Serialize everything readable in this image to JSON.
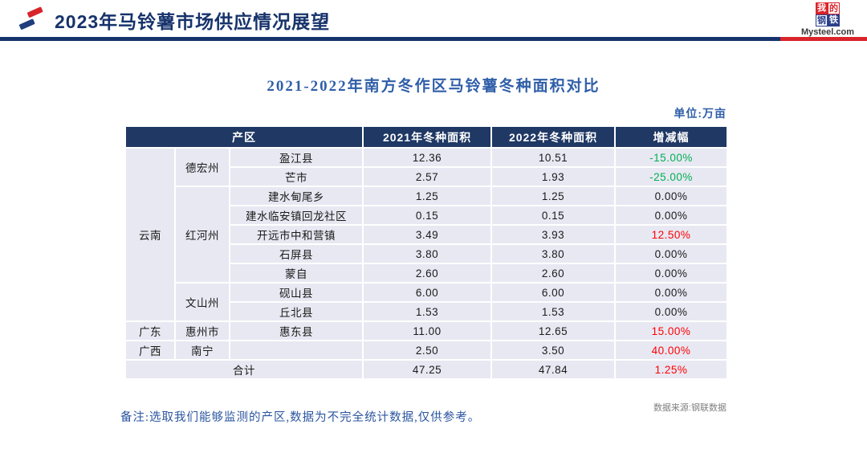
{
  "header": {
    "title": "2023年马铃薯市场供应情况展望",
    "logo": {
      "icon": "mysteel-flash-icon",
      "brand_chars": [
        "我",
        "的",
        "钢",
        "铁"
      ],
      "brand_domain": "Mysteel.com"
    }
  },
  "main": {
    "table_title": "2021-2022年南方冬作区马铃薯冬种面积对比",
    "unit_label": "单位:万亩"
  },
  "table": {
    "header": [
      {
        "text": "产区",
        "colspan": 3
      },
      {
        "text": "2021年冬种面积"
      },
      {
        "text": "2022年冬种面积"
      },
      {
        "text": "增减幅"
      }
    ],
    "rows": [
      {
        "cells": [
          {
            "text": "云南",
            "rowspan": 9,
            "name": "province-cell"
          },
          {
            "text": "德宏州",
            "rowspan": 2,
            "name": "prefecture-cell"
          },
          {
            "text": "盈江县",
            "name": "county-cell"
          },
          {
            "text": "12.36"
          },
          {
            "text": "10.51"
          },
          {
            "text": "-15.00%",
            "tone": "down",
            "name": "change-cell"
          }
        ]
      },
      {
        "cells": [
          {
            "text": "芒市",
            "name": "county-cell"
          },
          {
            "text": "2.57"
          },
          {
            "text": "1.93"
          },
          {
            "text": "-25.00%",
            "tone": "down",
            "name": "change-cell"
          }
        ]
      },
      {
        "cells": [
          {
            "text": "红河州",
            "rowspan": 5,
            "name": "prefecture-cell"
          },
          {
            "text": "建水甸尾乡",
            "name": "county-cell"
          },
          {
            "text": "1.25"
          },
          {
            "text": "1.25"
          },
          {
            "text": "0.00%",
            "tone": "flat",
            "name": "change-cell"
          }
        ]
      },
      {
        "cells": [
          {
            "text": "建水临安镇回龙社区",
            "name": "county-cell"
          },
          {
            "text": "0.15"
          },
          {
            "text": "0.15"
          },
          {
            "text": "0.00%",
            "tone": "flat",
            "name": "change-cell"
          }
        ]
      },
      {
        "cells": [
          {
            "text": "开远市中和营镇",
            "name": "county-cell"
          },
          {
            "text": "3.49"
          },
          {
            "text": "3.93"
          },
          {
            "text": "12.50%",
            "tone": "up",
            "name": "change-cell"
          }
        ]
      },
      {
        "cells": [
          {
            "text": "石屏县",
            "name": "county-cell"
          },
          {
            "text": "3.80"
          },
          {
            "text": "3.80"
          },
          {
            "text": "0.00%",
            "tone": "flat",
            "name": "change-cell"
          }
        ]
      },
      {
        "cells": [
          {
            "text": "蒙自",
            "name": "county-cell"
          },
          {
            "text": "2.60"
          },
          {
            "text": "2.60"
          },
          {
            "text": "0.00%",
            "tone": "flat",
            "name": "change-cell"
          }
        ]
      },
      {
        "cells": [
          {
            "text": "文山州",
            "rowspan": 2,
            "name": "prefecture-cell"
          },
          {
            "text": "砚山县",
            "name": "county-cell"
          },
          {
            "text": "6.00"
          },
          {
            "text": "6.00"
          },
          {
            "text": "0.00%",
            "tone": "flat",
            "name": "change-cell"
          }
        ]
      },
      {
        "cells": [
          {
            "text": "丘北县",
            "name": "county-cell"
          },
          {
            "text": "1.53"
          },
          {
            "text": "1.53"
          },
          {
            "text": "0.00%",
            "tone": "flat",
            "name": "change-cell"
          }
        ]
      },
      {
        "cells": [
          {
            "text": "广东",
            "name": "province-cell"
          },
          {
            "text": "惠州市",
            "name": "prefecture-cell"
          },
          {
            "text": "惠东县",
            "name": "county-cell"
          },
          {
            "text": "11.00"
          },
          {
            "text": "12.65"
          },
          {
            "text": "15.00%",
            "tone": "up",
            "name": "change-cell"
          }
        ]
      },
      {
        "cells": [
          {
            "text": "广西",
            "name": "province-cell"
          },
          {
            "text": "南宁",
            "name": "prefecture-cell"
          },
          {
            "text": "",
            "name": "county-cell"
          },
          {
            "text": "2.50"
          },
          {
            "text": "3.50"
          },
          {
            "text": "40.00%",
            "tone": "up",
            "name": "change-cell"
          }
        ]
      },
      {
        "cells": [
          {
            "text": "合计",
            "colspan": 3,
            "name": "total-label-cell"
          },
          {
            "text": "47.25"
          },
          {
            "text": "47.84"
          },
          {
            "text": "1.25%",
            "tone": "up",
            "name": "change-cell"
          }
        ]
      }
    ]
  },
  "footer": {
    "note": "备注:选取我们能够监测的产区,数据为不完全统计数据,仅供参考。",
    "source": "数据来源:钢联数据"
  },
  "colors": {
    "header_navy": "#1F3864",
    "divider_navy": "#17336B",
    "divider_red": "#D9242B",
    "body_lavender": "#E8E8F3",
    "title_blue": "#2F5EA8",
    "decrease_green": "#00B050",
    "increase_red": "#FF0000"
  }
}
